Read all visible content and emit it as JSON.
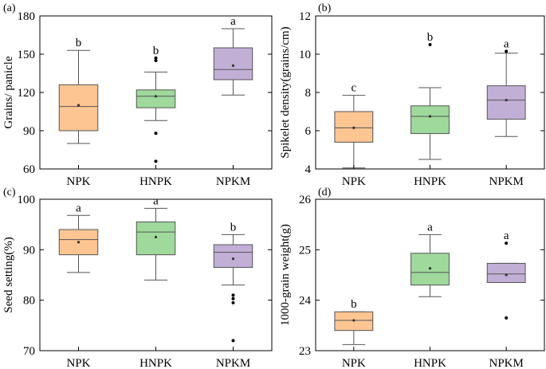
{
  "colors": {
    "NPK": "#fcc592",
    "HNPK": "#9fd99b",
    "NPKM": "#c1afd6",
    "line": "#555555",
    "axis": "#000000"
  },
  "chart_data": [
    {
      "type": "box",
      "panel": "(a)",
      "ylabel": "Grains/ panicle",
      "categories": [
        "NPK",
        "HNPK",
        "NPKM"
      ],
      "ylim": [
        60,
        180
      ],
      "yticks": [
        60,
        90,
        120,
        150,
        180
      ],
      "boxes": [
        {
          "name": "NPK",
          "q1": 90,
          "median": 109,
          "q3": 126,
          "whisker_low": 80,
          "whisker_high": 153,
          "mean": 110,
          "outliers": [],
          "letter": "b"
        },
        {
          "name": "HNPK",
          "q1": 108,
          "median": 117,
          "q3": 122,
          "whisker_low": 98,
          "whisker_high": 136,
          "mean": 117,
          "outliers": [
            88,
            145,
            147,
            66
          ],
          "letter": "b"
        },
        {
          "name": "NPKM",
          "q1": 130,
          "median": 138,
          "q3": 155,
          "whisker_low": 118,
          "whisker_high": 170,
          "mean": 141,
          "outliers": [],
          "letter": "a"
        }
      ]
    },
    {
      "type": "box",
      "panel": "(b)",
      "ylabel": "Spikelet density(grains/cm)",
      "categories": [
        "NPK",
        "HNPK",
        "NPKM"
      ],
      "ylim": [
        4,
        12
      ],
      "yticks": [
        4,
        6,
        8,
        10,
        12
      ],
      "boxes": [
        {
          "name": "NPK",
          "q1": 5.4,
          "median": 6.15,
          "q3": 7.0,
          "whisker_low": 4.05,
          "whisker_high": 7.85,
          "mean": 6.15,
          "outliers": [],
          "letter": "c"
        },
        {
          "name": "HNPK",
          "q1": 5.85,
          "median": 6.75,
          "q3": 7.3,
          "whisker_low": 4.5,
          "whisker_high": 8.25,
          "mean": 6.75,
          "outliers": [
            10.5
          ],
          "letter": "b"
        },
        {
          "name": "NPKM",
          "q1": 6.6,
          "median": 7.6,
          "q3": 8.35,
          "whisker_low": 5.7,
          "whisker_high": 10.05,
          "mean": 7.6,
          "outliers": [
            10.15
          ],
          "letter": "a"
        }
      ]
    },
    {
      "type": "box",
      "panel": "(c)",
      "ylabel": "Seed setting(%)",
      "categories": [
        "NPK",
        "HNPK",
        "NPKM"
      ],
      "ylim": [
        70,
        100
      ],
      "yticks": [
        70,
        80,
        90,
        100
      ],
      "boxes": [
        {
          "name": "NPK",
          "q1": 89,
          "median": 92,
          "q3": 94,
          "whisker_low": 85.5,
          "whisker_high": 96.8,
          "mean": 91.5,
          "outliers": [],
          "letter": "a"
        },
        {
          "name": "HNPK",
          "q1": 89,
          "median": 93.5,
          "q3": 95.5,
          "whisker_low": 84,
          "whisker_high": 98.2,
          "mean": 92.5,
          "outliers": [],
          "letter": "a"
        },
        {
          "name": "NPKM",
          "q1": 86.5,
          "median": 89.5,
          "q3": 91,
          "whisker_low": 83,
          "whisker_high": 93,
          "mean": 88.2,
          "outliers": [
            81,
            80.3,
            79.5,
            72
          ],
          "letter": "b"
        }
      ]
    },
    {
      "type": "box",
      "panel": "(d)",
      "ylabel": "1000-grain weight(g)",
      "categories": [
        "NPK",
        "HNPK",
        "NPKM"
      ],
      "ylim": [
        23,
        26
      ],
      "yticks": [
        23,
        24,
        25,
        26
      ],
      "boxes": [
        {
          "name": "NPK",
          "q1": 23.4,
          "median": 23.6,
          "q3": 23.77,
          "whisker_low": 23.12,
          "whisker_high": 23.77,
          "mean": 23.6,
          "outliers": [],
          "letter": "b"
        },
        {
          "name": "HNPK",
          "q1": 24.3,
          "median": 24.55,
          "q3": 24.93,
          "whisker_low": 24.07,
          "whisker_high": 25.3,
          "mean": 24.63,
          "outliers": [],
          "letter": "a"
        },
        {
          "name": "NPKM",
          "q1": 24.35,
          "median": 24.52,
          "q3": 24.73,
          "whisker_low": 24.35,
          "whisker_high": 24.73,
          "mean": 24.5,
          "outliers": [
            25.13,
            23.65
          ],
          "letter": "a"
        }
      ]
    }
  ]
}
